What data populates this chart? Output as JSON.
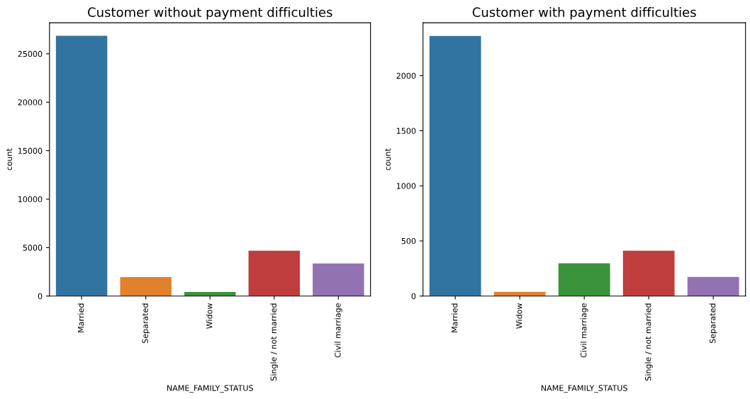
{
  "chart_data": [
    {
      "type": "bar",
      "title": "Customer without payment difficulties",
      "xlabel": "NAME_FAMILY_STATUS",
      "ylabel": "count",
      "categories": [
        "Married",
        "Separated",
        "Widow",
        "Single / not married",
        "Civil marriage"
      ],
      "values": [
        26850,
        1950,
        420,
        4680,
        3370
      ],
      "colors": [
        "#3274a1",
        "#e1812c",
        "#3a923a",
        "#c03d3e",
        "#9372b2"
      ],
      "ylim": [
        0,
        28200
      ],
      "yticks": [
        0,
        5000,
        10000,
        15000,
        20000,
        25000
      ],
      "grid": false,
      "legend": false
    },
    {
      "type": "bar",
      "title": "Customer with payment difficulties",
      "xlabel": "NAME_FAMILY_STATUS",
      "ylabel": "count",
      "categories": [
        "Married",
        "Widow",
        "Civil marriage",
        "Single / not married",
        "Separated"
      ],
      "values": [
        2360,
        39,
        297,
        412,
        173
      ],
      "colors": [
        "#3274a1",
        "#e1812c",
        "#3a923a",
        "#c03d3e",
        "#9372b2"
      ],
      "ylim": [
        0,
        2480
      ],
      "yticks": [
        0,
        500,
        1000,
        1500,
        2000
      ],
      "grid": false,
      "legend": false
    }
  ]
}
